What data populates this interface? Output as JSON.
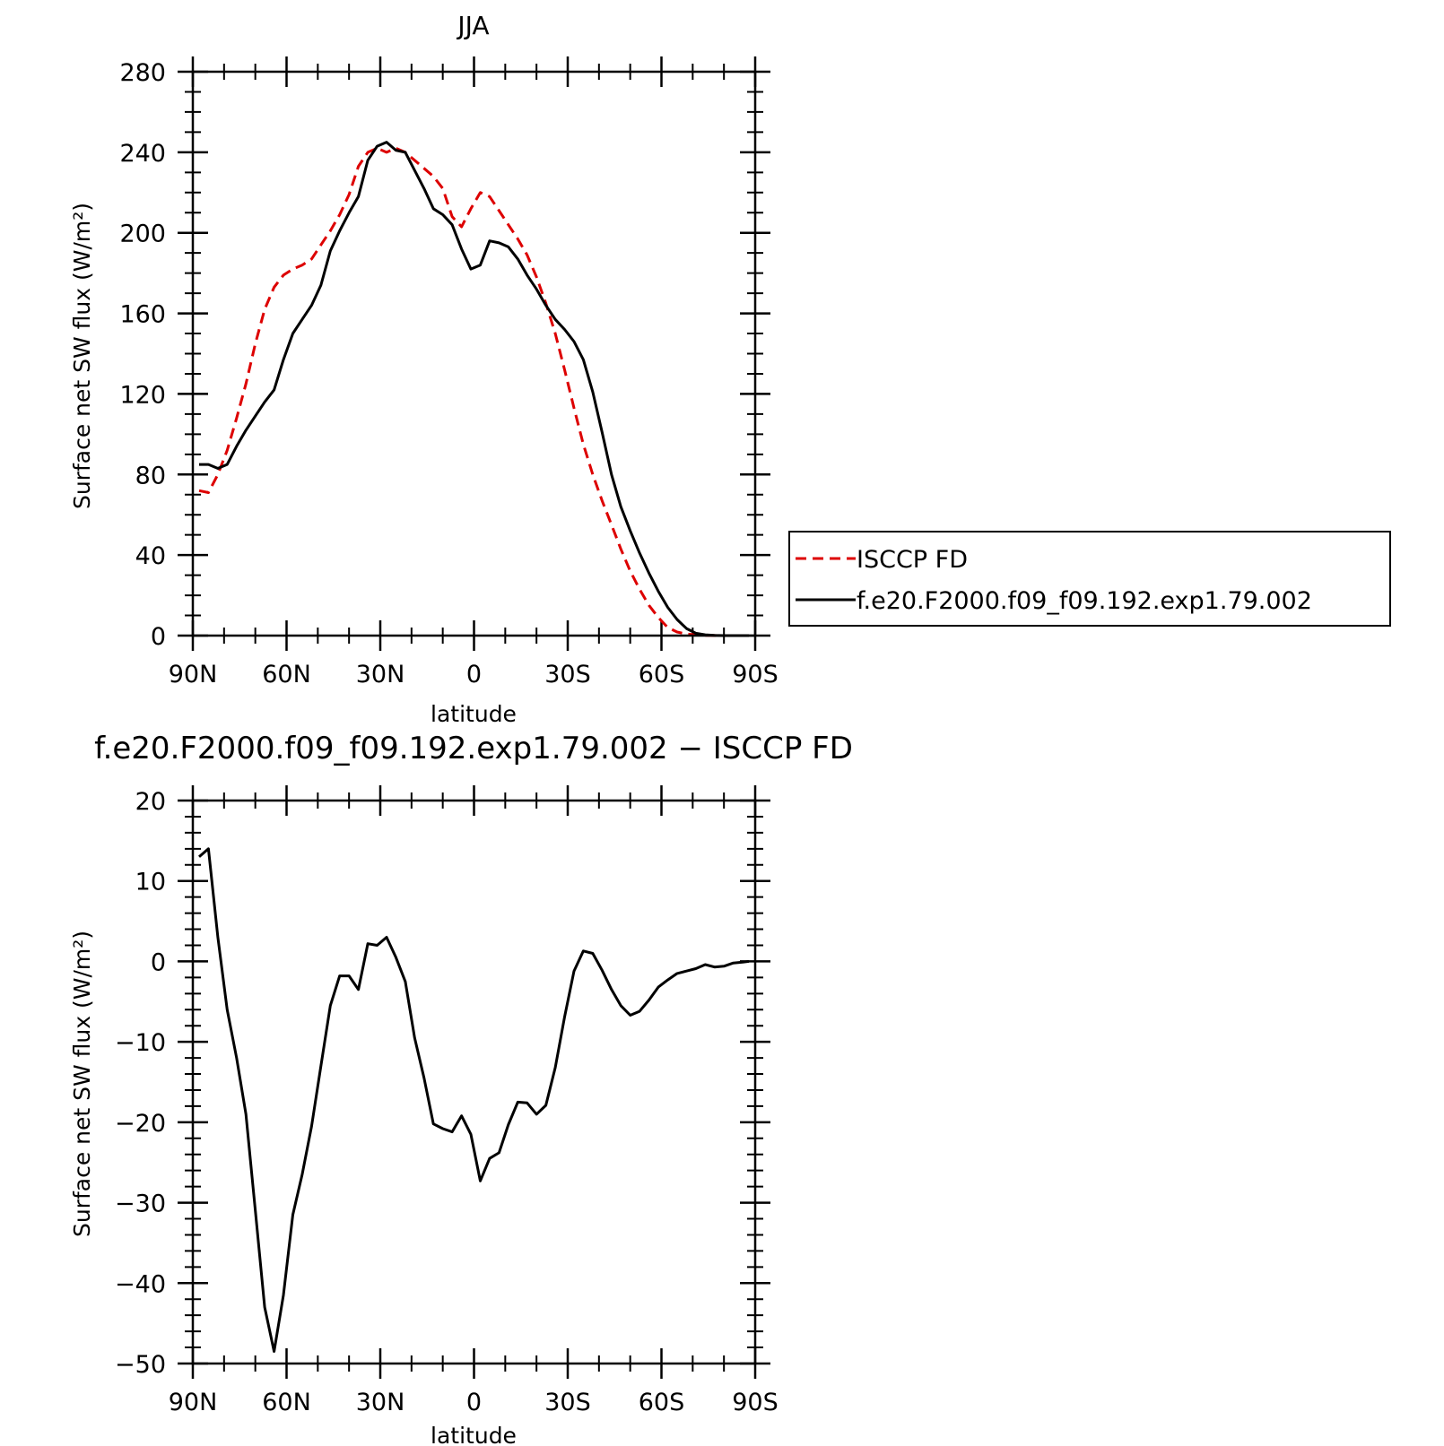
{
  "chart_data": [
    {
      "type": "line",
      "title": "JJA",
      "xlabel": "latitude",
      "ylabel": "Surface net SW flux (W/m²)",
      "xlim": [
        90,
        -90
      ],
      "ylim": [
        0,
        280
      ],
      "xticks": [
        90,
        60,
        30,
        0,
        -30,
        -60,
        -90
      ],
      "xtick_labels": [
        "90N",
        "60N",
        "30N",
        "0",
        "30S",
        "60S",
        "90S"
      ],
      "yticks": [
        0,
        40,
        80,
        120,
        160,
        200,
        240,
        280
      ],
      "ytick_labels": [
        "0",
        "40",
        "80",
        "120",
        "160",
        "200",
        "240",
        "280"
      ],
      "grid": false,
      "legend_position": "right",
      "series": [
        {
          "name": "ISCCP FD",
          "color": "#dd0000",
          "dash": "dashed",
          "x": [
            88,
            85,
            82,
            79,
            76,
            73,
            70,
            67,
            64,
            61,
            58,
            55,
            52,
            49,
            46,
            43,
            40,
            37,
            34,
            31,
            28,
            25,
            22,
            19,
            16,
            13,
            10,
            7,
            4,
            1,
            -2,
            -5,
            -8,
            -11,
            -14,
            -17,
            -20,
            -23,
            -26,
            -29,
            -32,
            -35,
            -38,
            -41,
            -44,
            -47,
            -50,
            -53,
            -56,
            -59,
            -62,
            -65,
            -68,
            -71,
            -74,
            -77,
            -80,
            -83,
            -86,
            -88
          ],
          "y": [
            72,
            71,
            80,
            92,
            108,
            125,
            145,
            162,
            173,
            179,
            182,
            184,
            187,
            194,
            201,
            209,
            219,
            233,
            240,
            242,
            240,
            242,
            240,
            236,
            232,
            228,
            222,
            208,
            203,
            212,
            220,
            218,
            211,
            204,
            197,
            189,
            178,
            165,
            150,
            132,
            113,
            95,
            80,
            67,
            55,
            43,
            32,
            23,
            15,
            9,
            4,
            1.8,
            0.8,
            0.3,
            0.1,
            0.05,
            0,
            0,
            0,
            0
          ]
        },
        {
          "name": "f.e20.F2000.f09_f09.192.exp1.79.002",
          "color": "#000000",
          "dash": "solid",
          "x": [
            88,
            85,
            82,
            79,
            76,
            73,
            70,
            67,
            64,
            61,
            58,
            55,
            52,
            49,
            46,
            43,
            40,
            37,
            34,
            31,
            28,
            25,
            22,
            19,
            16,
            13,
            10,
            7,
            4,
            1,
            -2,
            -5,
            -8,
            -11,
            -14,
            -17,
            -20,
            -23,
            -26,
            -29,
            -32,
            -35,
            -38,
            -41,
            -44,
            -47,
            -50,
            -53,
            -56,
            -59,
            -62,
            -65,
            -68,
            -71,
            -74,
            -77,
            -80,
            -83,
            -86,
            -88
          ],
          "y": [
            85,
            85,
            83,
            85,
            94,
            102,
            109,
            116,
            122,
            137,
            150,
            157,
            164,
            174,
            191,
            201,
            210,
            218,
            236,
            243,
            245,
            241,
            240,
            231,
            222,
            212,
            209,
            204,
            192,
            182,
            184,
            196,
            195,
            193,
            187,
            179,
            172,
            164,
            157,
            152,
            146,
            137,
            121,
            101,
            80,
            64,
            52,
            41,
            31,
            22,
            14,
            8,
            3.5,
            1.2,
            0.4,
            0.1,
            0,
            0,
            0,
            0
          ]
        }
      ]
    },
    {
      "type": "line",
      "title": "f.e20.F2000.f09_f09.192.exp1.79.002 − ISCCP FD",
      "xlabel": "latitude",
      "ylabel": "Surface net SW flux (W/m²)",
      "xlim": [
        90,
        -90
      ],
      "ylim": [
        -50,
        20
      ],
      "xticks": [
        90,
        60,
        30,
        0,
        -30,
        -60,
        -90
      ],
      "xtick_labels": [
        "90N",
        "60N",
        "30N",
        "0",
        "30S",
        "60S",
        "90S"
      ],
      "yticks": [
        -50,
        -40,
        -30,
        -20,
        -10,
        0,
        10,
        20
      ],
      "ytick_labels": [
        "−50",
        "−40",
        "−30",
        "−20",
        "−10",
        "0",
        "10",
        "20"
      ],
      "grid": false,
      "series": [
        {
          "color": "#000000",
          "dash": "solid",
          "x": [
            88,
            85,
            82,
            79,
            76,
            73,
            70,
            67,
            64,
            61,
            58,
            55,
            52,
            49,
            46,
            43,
            40,
            37,
            34,
            31,
            28,
            25,
            22,
            19,
            16,
            13,
            10,
            7,
            4,
            1,
            -2,
            -5,
            -8,
            -11,
            -14,
            -17,
            -20,
            -23,
            -26,
            -29,
            -32,
            -35,
            -38,
            -41,
            -44,
            -47,
            -50,
            -53,
            -56,
            -59,
            -62,
            -65,
            -68,
            -71,
            -74,
            -77,
            -80,
            -83,
            -86,
            -88
          ],
          "y": [
            13,
            14,
            3,
            -6,
            -12,
            -19,
            -31,
            -43,
            -48.5,
            -41.5,
            -31.5,
            -26.5,
            -20.5,
            -13,
            -5.5,
            -1.8,
            -1.8,
            -3.5,
            2.2,
            2,
            3,
            0.5,
            -2.5,
            -9.5,
            -14.5,
            -20.2,
            -20.8,
            -21.2,
            -19.2,
            -21.5,
            -27.3,
            -24.5,
            -23.8,
            -20.3,
            -17.5,
            -17.6,
            -19,
            -17.9,
            -13.2,
            -6.9,
            -1.2,
            1.3,
            1,
            -1.1,
            -3.5,
            -5.5,
            -6.7,
            -6.2,
            -4.8,
            -3.2,
            -2.3,
            -1.5,
            -1.2,
            -0.9,
            -0.4,
            -0.7,
            -0.6,
            -0.2,
            -0.1,
            0
          ]
        }
      ]
    }
  ]
}
